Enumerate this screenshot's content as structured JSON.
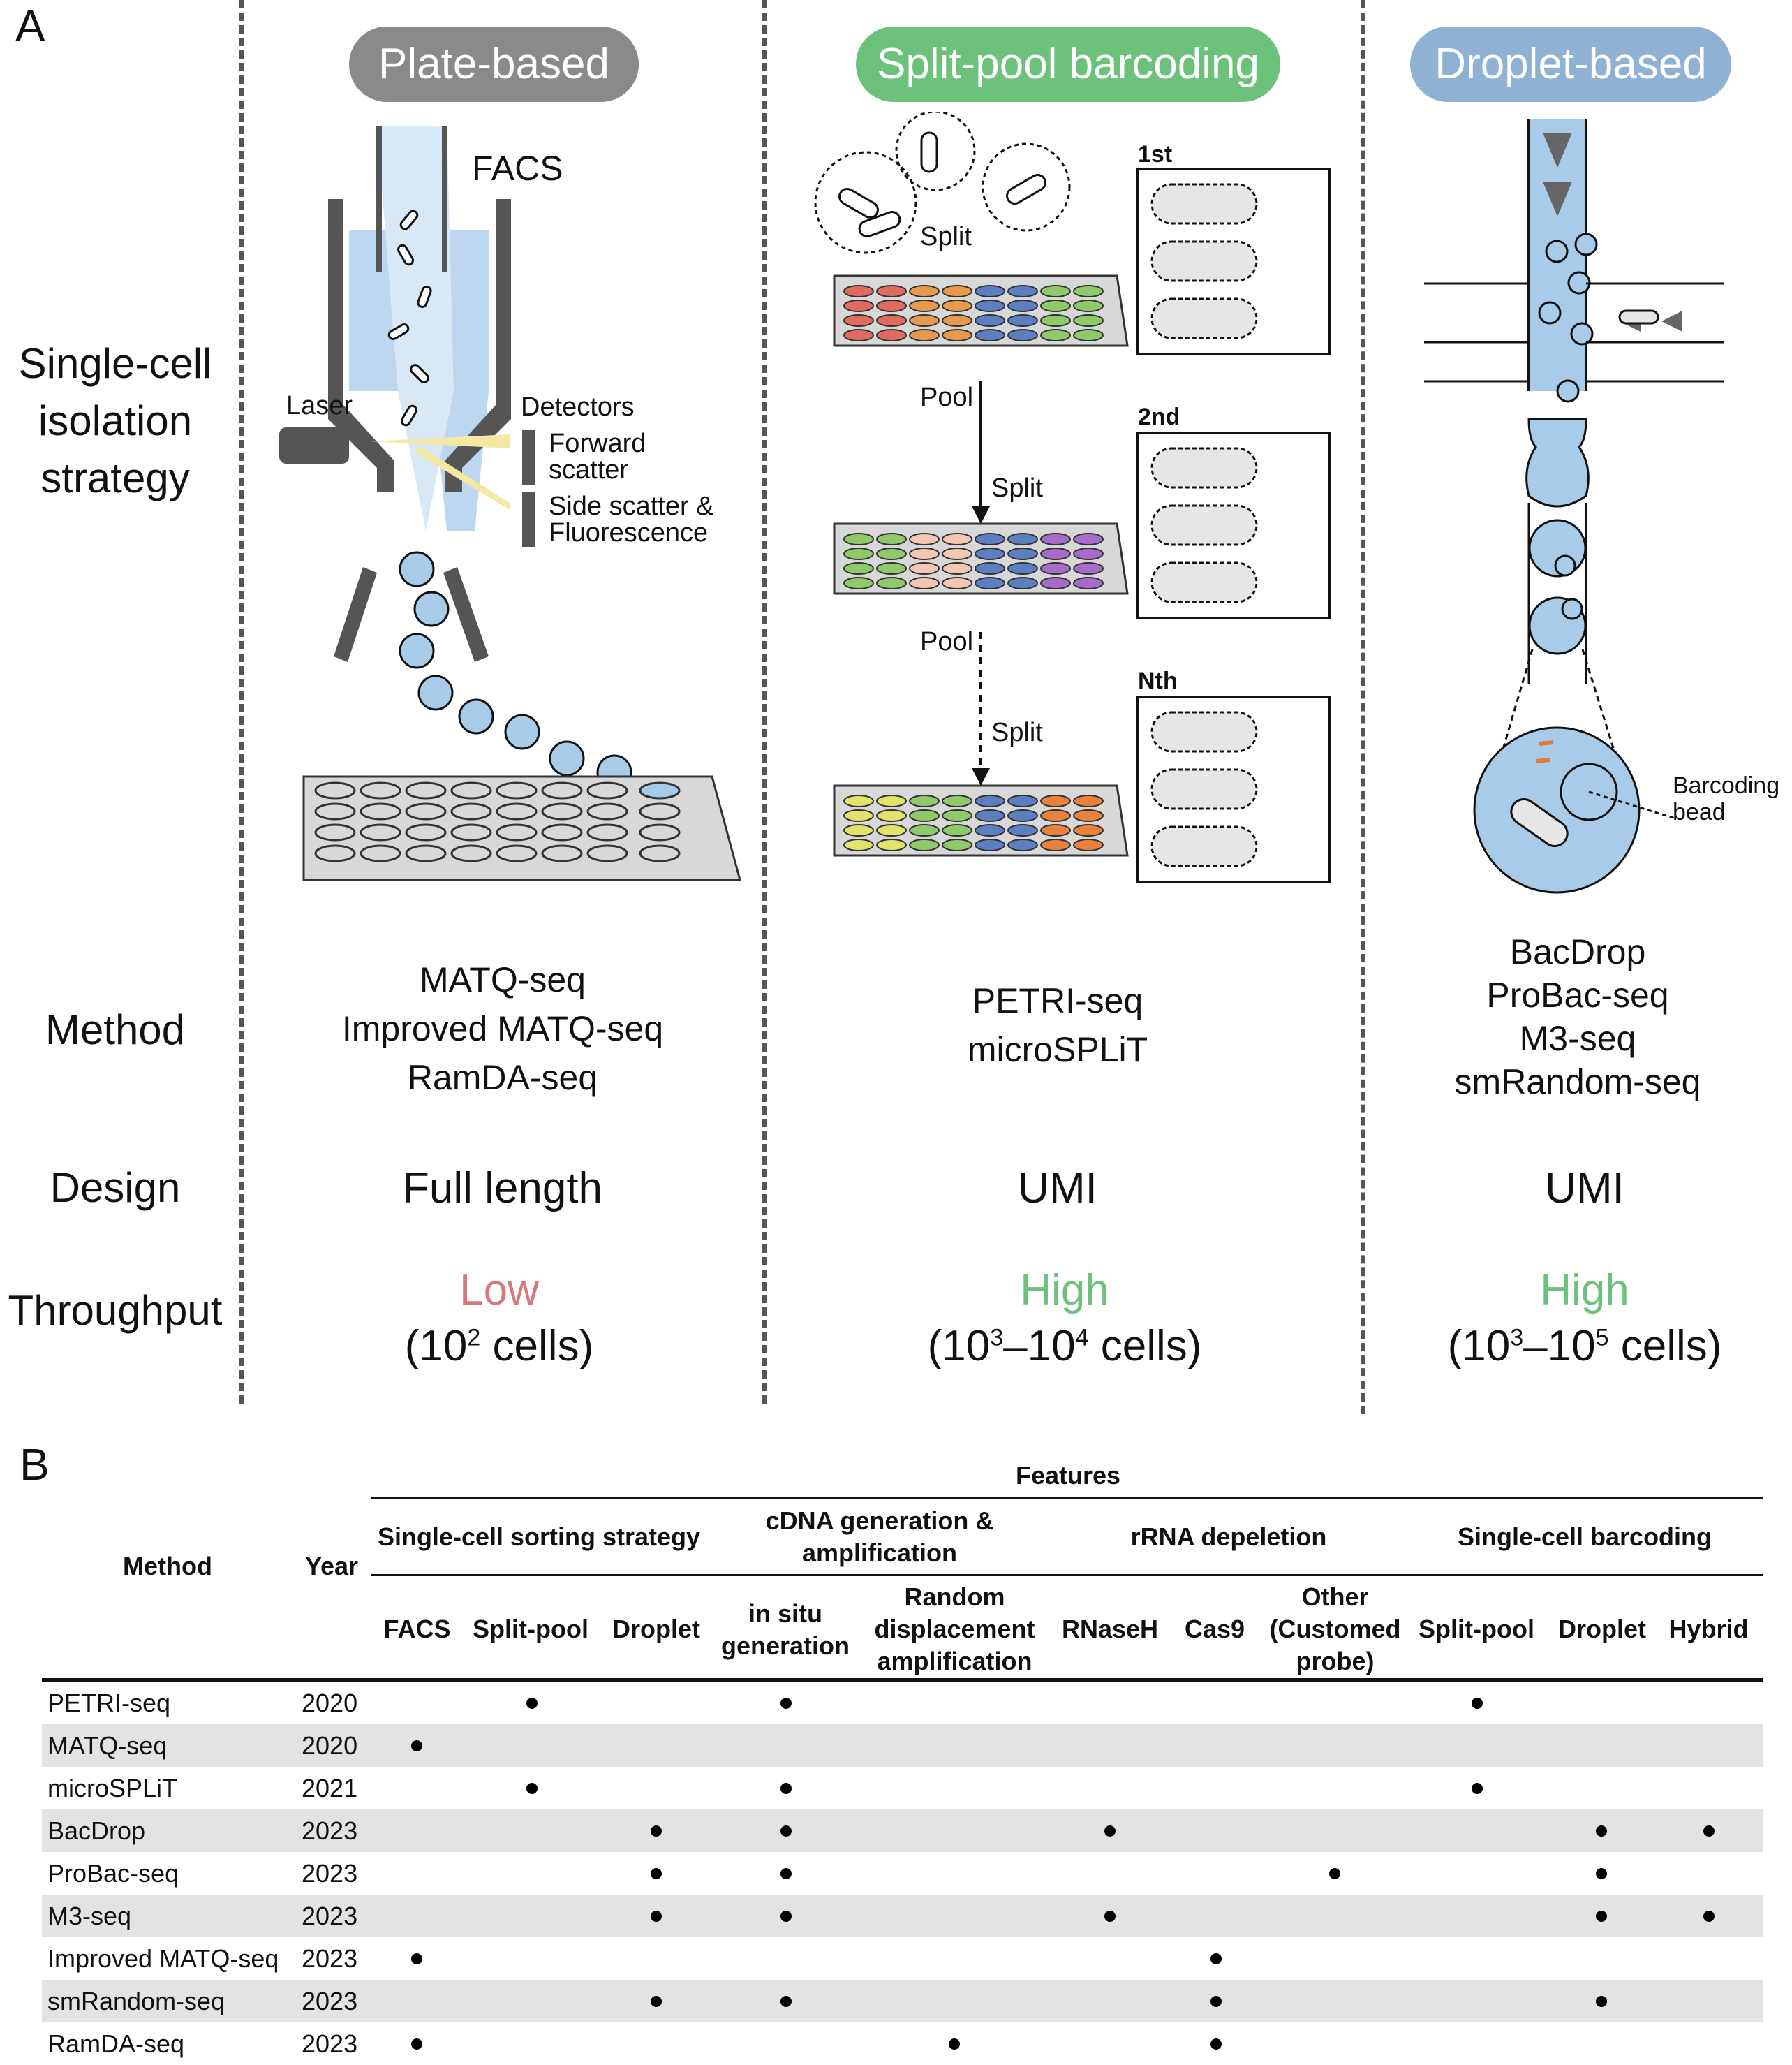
{
  "panel_a": {
    "letter": "A",
    "row_labels": {
      "isolation": [
        "Single-cell",
        "isolation",
        "strategy"
      ],
      "method": "Method",
      "design": "Design",
      "throughput": "Throughput"
    },
    "columns": [
      {
        "title": "Plate-based",
        "color": "#8a8a8a",
        "methods": [
          "MATQ-seq",
          "Improved MATQ-seq",
          "RamDA-seq"
        ],
        "design": "Full length",
        "throughput_word": "Low",
        "throughput_color": "#d9787a",
        "throughput_range": [
          "(10",
          "2",
          " cells)"
        ]
      },
      {
        "title": "Split-pool barcoding",
        "color": "#6cc27a",
        "methods": [
          "PETRI-seq",
          "microSPLiT"
        ],
        "design": "UMI",
        "throughput_word": "High",
        "throughput_color": "#6cc27a",
        "throughput_range": [
          "(10",
          "3",
          "–10",
          "4",
          " cells)"
        ]
      },
      {
        "title": "Droplet-based",
        "color": "#8fb1d3",
        "methods": [
          "BacDrop",
          "ProBac-seq",
          "M3-seq",
          "smRandom-seq"
        ],
        "design": "UMI",
        "throughput_word": "High",
        "throughput_color": "#6cc27a",
        "throughput_range": [
          "(10",
          "3",
          "–10",
          "5",
          " cells)"
        ]
      }
    ],
    "plate_labels": {
      "facs": "FACS",
      "laser": "Laser",
      "detectors": "Detectors",
      "forward": [
        "Forward",
        "scatter"
      ],
      "side": [
        "Side scatter &",
        "Fluorescence"
      ]
    },
    "split_labels": {
      "split": "Split",
      "pool": "Pool",
      "round1": "1st",
      "round2": "2nd",
      "roundN": "Nth"
    },
    "droplet_labels": {
      "bead": [
        "Barcoding",
        "bead"
      ]
    }
  },
  "panel_b": {
    "letter": "B",
    "features_label": "Features",
    "method_header": "Method",
    "year_header": "Year",
    "groups": [
      {
        "name": "Single-cell sorting strategy",
        "subs": [
          "FACS",
          "Split-pool",
          "Droplet"
        ]
      },
      {
        "name": [
          "cDNA generation &",
          "amplification"
        ],
        "subs": [
          [
            "in situ",
            "generation"
          ],
          [
            "Random",
            "displacement",
            "amplification"
          ]
        ]
      },
      {
        "name": "rRNA depeletion",
        "subs": [
          "RNaseH",
          "Cas9",
          [
            "Other",
            "(Customed",
            "probe)"
          ]
        ]
      },
      {
        "name": "Single-cell barcoding",
        "subs": [
          "Split-pool",
          "Droplet",
          "Hybrid"
        ]
      }
    ],
    "rows": [
      {
        "method": "PETRI-seq",
        "year": "2020",
        "marks": [
          0,
          1,
          0,
          1,
          0,
          0,
          0,
          0,
          1,
          0,
          0
        ]
      },
      {
        "method": "MATQ-seq",
        "year": "2020",
        "marks": [
          1,
          0,
          0,
          0,
          0,
          0,
          0,
          0,
          0,
          0,
          0
        ]
      },
      {
        "method": "microSPLiT",
        "year": "2021",
        "marks": [
          0,
          1,
          0,
          1,
          0,
          0,
          0,
          0,
          1,
          0,
          0
        ]
      },
      {
        "method": "BacDrop",
        "year": "2023",
        "marks": [
          0,
          0,
          1,
          1,
          0,
          1,
          0,
          0,
          0,
          1,
          1
        ]
      },
      {
        "method": "ProBac-seq",
        "year": "2023",
        "marks": [
          0,
          0,
          1,
          1,
          0,
          0,
          0,
          1,
          0,
          1,
          0
        ]
      },
      {
        "method": "M3-seq",
        "year": "2023",
        "marks": [
          0,
          0,
          1,
          1,
          0,
          1,
          0,
          0,
          0,
          1,
          1
        ]
      },
      {
        "method": "Improved MATQ-seq",
        "year": "2023",
        "marks": [
          1,
          0,
          0,
          0,
          0,
          0,
          1,
          0,
          0,
          0,
          0
        ]
      },
      {
        "method": "smRandom-seq",
        "year": "2023",
        "marks": [
          0,
          0,
          1,
          1,
          0,
          0,
          1,
          0,
          0,
          1,
          0
        ]
      },
      {
        "method": "RamDA-seq",
        "year": "2023",
        "marks": [
          1,
          0,
          0,
          0,
          1,
          0,
          1,
          0,
          0,
          0,
          0
        ]
      }
    ]
  }
}
